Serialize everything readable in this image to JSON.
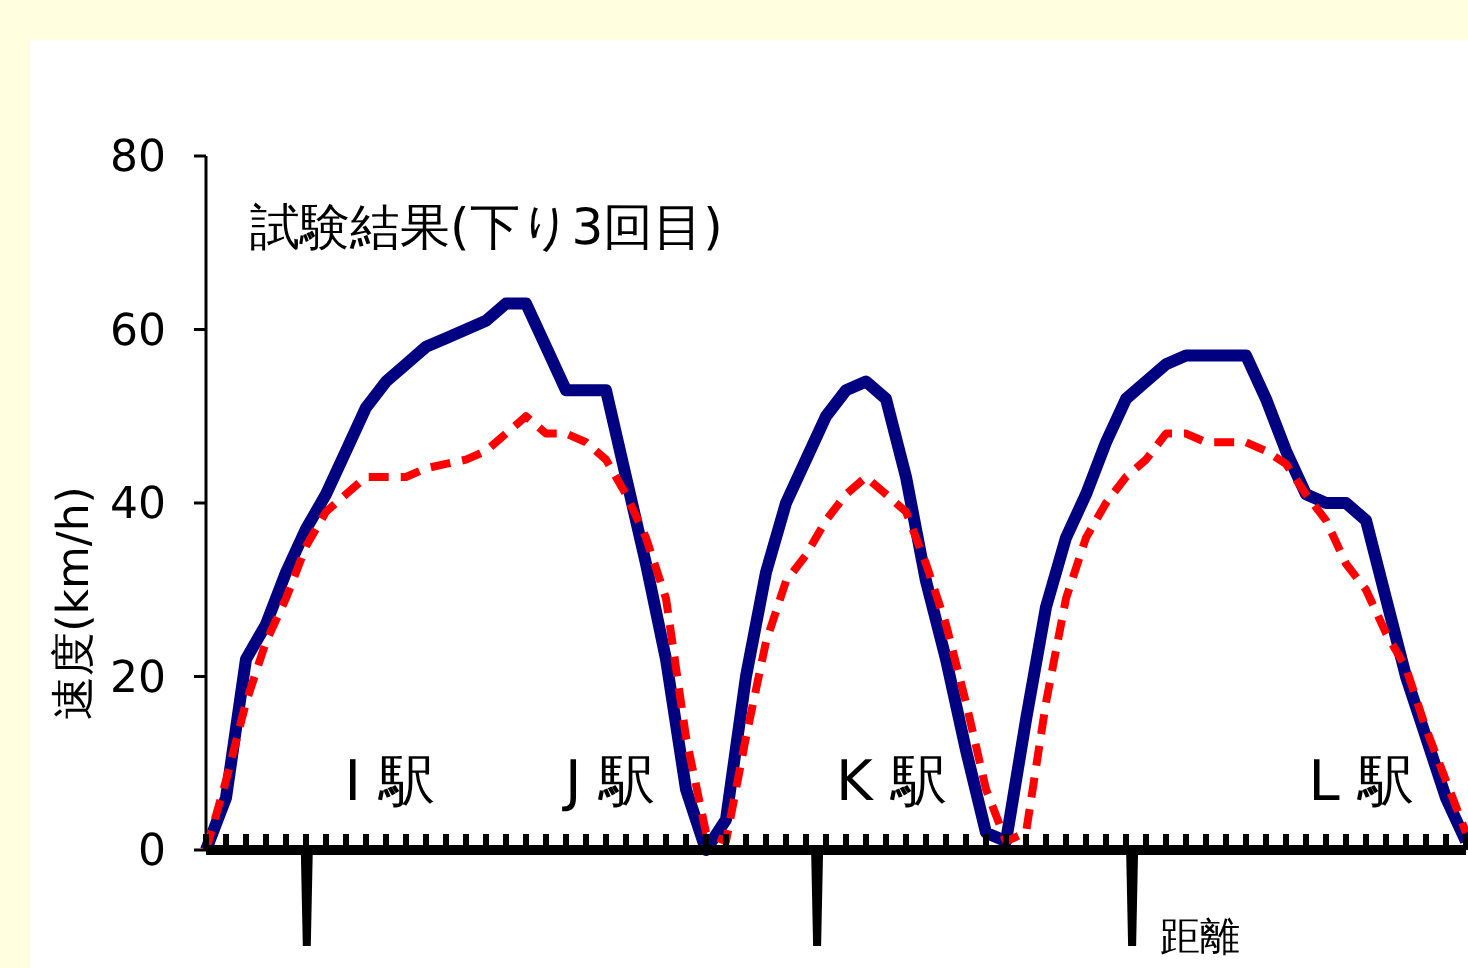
{
  "chart_data": {
    "type": "line",
    "title": "試験結果(下り3回目)",
    "xlabel": "距離",
    "ylabel": "速度(km/h)",
    "categories": [
      null,
      null,
      null,
      null,
      null,
      null,
      null,
      null,
      null,
      null,
      null,
      null,
      null,
      null,
      null,
      null,
      null,
      null,
      null,
      null,
      null,
      null,
      null,
      null,
      null,
      null,
      null,
      null,
      null,
      null,
      null,
      null,
      null,
      null,
      null,
      null,
      null,
      null,
      null,
      null,
      null,
      null,
      null,
      null,
      null,
      null,
      null,
      null,
      null,
      null,
      null,
      null,
      null,
      null,
      null,
      null,
      null,
      null,
      null,
      null,
      null,
      null,
      null,
      null
    ],
    "series": [
      {
        "color": "#000080",
        "line_style": "solid",
        "values": [
          0,
          6,
          22,
          26,
          32,
          37,
          41,
          46,
          51,
          54,
          56,
          58,
          59,
          60,
          61,
          63,
          63,
          58,
          53,
          53,
          53,
          43,
          33,
          22,
          7,
          0,
          3.5,
          20,
          32,
          40,
          45,
          50,
          53,
          54,
          52,
          43,
          31,
          22,
          11.5,
          2,
          1,
          15,
          28,
          36,
          41,
          47,
          52,
          54,
          56,
          57,
          57,
          57,
          57,
          52,
          46,
          41,
          40,
          40,
          38,
          29,
          20,
          13,
          6,
          1
        ]
      },
      {
        "color": "#ff0000",
        "line_style": "dashed",
        "values": [
          0,
          8,
          17,
          24,
          29,
          35,
          39,
          41,
          43,
          43,
          43,
          44,
          44.5,
          45,
          46,
          48,
          50,
          48,
          48,
          47,
          45,
          41,
          36,
          29,
          13,
          2,
          1,
          13,
          24,
          31,
          34,
          38,
          41,
          43,
          41,
          39,
          33,
          26,
          17,
          7,
          1,
          2,
          17,
          29,
          36,
          40,
          43,
          45,
          48,
          48,
          47,
          47,
          47,
          46,
          44.5,
          41,
          38,
          33,
          30,
          25,
          21,
          14,
          8,
          2
        ]
      }
    ],
    "ylim": [
      0,
      80
    ],
    "yticks": [
      0,
      20,
      40,
      60,
      80
    ],
    "grid": false,
    "marker": "none",
    "annotations": [
      "I 駅",
      "J 駅",
      "K 駅",
      "L 駅"
    ]
  }
}
